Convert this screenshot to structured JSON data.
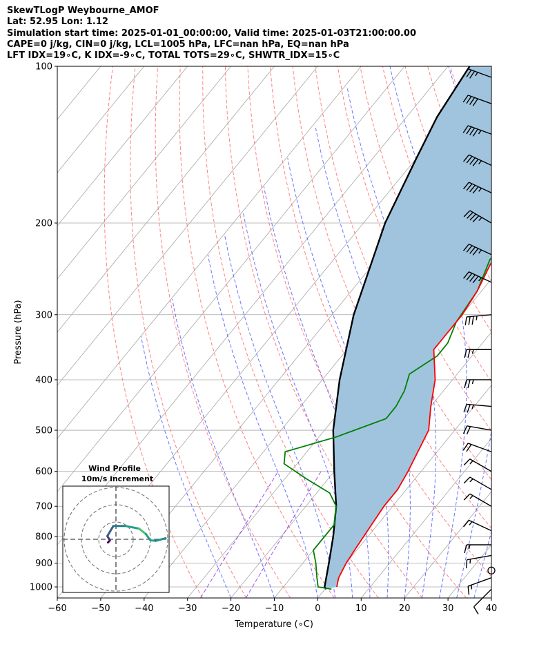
{
  "header": {
    "line1": "SkewTLogP Weybourne_AMOF",
    "line2": "Lat: 52.95   Lon: 1.12",
    "line3": "Simulation start time: 2025-01-01_00:00:00, Valid time: 2025-01-03T21:00:00.00",
    "line4": "CAPE=0 j/kg, CIN=0 j/kg, LCL=1005 hPa, LFC=nan hPa, EQ=nan hPa",
    "line5": "LFT IDX=19∘C, K IDX=-9∘C, TOTAL TOTS=29∘C, SHWTR_IDX=15∘C"
  },
  "chart_data": {
    "type": "line",
    "xlabel": "Temperature (∘C)",
    "ylabel": "Pressure (hPa)",
    "x_ticks": [
      -60,
      -50,
      -40,
      -30,
      -20,
      -10,
      0,
      10,
      20,
      30,
      40
    ],
    "x_tick_labels": [
      "−60",
      "−50",
      "−40",
      "−30",
      "−20",
      "−10",
      "0",
      "10",
      "20",
      "30",
      "40"
    ],
    "y_ticks": [
      100,
      200,
      300,
      400,
      500,
      600,
      700,
      800,
      900,
      1000
    ],
    "xlim": [
      -60,
      40
    ],
    "ylim": [
      1050,
      100
    ],
    "y_scale": "log",
    "grid": true,
    "colors": {
      "temperature": "#ff0000",
      "dewpoint": "#008000",
      "parcel": "#000000",
      "cape_fill": "#a0c4de",
      "dry_adiabats": "#ff6b6b",
      "moist_adiabats": "#4d5dff",
      "mixing_ratio": "#8a2be2",
      "isotherms": "#a6a6a6"
    },
    "series": [
      {
        "key": "temperature",
        "points": [
          [
            2.3,
            1000
          ],
          [
            1,
            960
          ],
          [
            0,
            900
          ],
          [
            -0.5,
            850
          ],
          [
            -1,
            800
          ],
          [
            -2,
            700
          ],
          [
            -2,
            650
          ],
          [
            -3,
            600
          ],
          [
            -6,
            500
          ],
          [
            -10,
            450
          ],
          [
            -14,
            400
          ],
          [
            -20,
            350
          ],
          [
            -20,
            300
          ],
          [
            -21,
            270
          ],
          [
            -23,
            240
          ],
          [
            -22,
            215
          ],
          [
            -20,
            200
          ],
          [
            -16,
            180
          ],
          [
            -13,
            160
          ],
          [
            -11,
            140
          ],
          [
            -10,
            120
          ],
          [
            -11,
            100
          ]
        ]
      },
      {
        "key": "dewpoint",
        "points": [
          [
            1.5,
            1010
          ],
          [
            -2,
            1000
          ],
          [
            -4,
            960
          ],
          [
            -7,
            900
          ],
          [
            -10,
            850
          ],
          [
            -10,
            800
          ],
          [
            -10,
            760
          ],
          [
            -13,
            700
          ],
          [
            -17,
            660
          ],
          [
            -25,
            620
          ],
          [
            -33,
            580
          ],
          [
            -35,
            550
          ],
          [
            -26,
            515
          ],
          [
            -18,
            475
          ],
          [
            -18,
            450
          ],
          [
            -19,
            420
          ],
          [
            -21,
            390
          ],
          [
            -18,
            360
          ],
          [
            -18,
            340
          ],
          [
            -20,
            310
          ],
          [
            -21,
            270
          ],
          [
            -24,
            235
          ],
          [
            -23,
            215
          ],
          [
            -20,
            195
          ],
          [
            -18,
            170
          ],
          [
            -20,
            150
          ],
          [
            -17,
            135
          ],
          [
            -12,
            120
          ],
          [
            -10,
            100
          ]
        ]
      },
      {
        "key": "parcel",
        "points": [
          [
            0.3,
            1010
          ],
          [
            -0.5,
            1000
          ],
          [
            -4,
            900
          ],
          [
            -8,
            800
          ],
          [
            -13,
            700
          ],
          [
            -20,
            600
          ],
          [
            -28,
            500
          ],
          [
            -36,
            400
          ],
          [
            -45,
            300
          ],
          [
            -55,
            200
          ],
          [
            -60,
            150
          ],
          [
            -63,
            125
          ],
          [
            -65,
            100
          ]
        ]
      }
    ],
    "wind_barbs": [
      {
        "p": 1010,
        "dir": 225,
        "kt": 10
      },
      {
        "p": 960,
        "dir": 250,
        "kt": 15
      },
      {
        "p": 930,
        "dir": 0,
        "kt": 0
      },
      {
        "p": 870,
        "dir": 260,
        "kt": 15
      },
      {
        "p": 830,
        "dir": 270,
        "kt": 15
      },
      {
        "p": 780,
        "dir": 295,
        "kt": 15
      },
      {
        "p": 700,
        "dir": 300,
        "kt": 15
      },
      {
        "p": 650,
        "dir": 300,
        "kt": 15
      },
      {
        "p": 600,
        "dir": 300,
        "kt": 15
      },
      {
        "p": 550,
        "dir": 290,
        "kt": 20
      },
      {
        "p": 500,
        "dir": 280,
        "kt": 20
      },
      {
        "p": 450,
        "dir": 275,
        "kt": 25
      },
      {
        "p": 400,
        "dir": 270,
        "kt": 25
      },
      {
        "p": 350,
        "dir": 270,
        "kt": 25
      },
      {
        "p": 300,
        "dir": 265,
        "kt": 35
      },
      {
        "p": 260,
        "dir": 295,
        "kt": 45
      },
      {
        "p": 230,
        "dir": 295,
        "kt": 45
      },
      {
        "p": 200,
        "dir": 300,
        "kt": 45
      },
      {
        "p": 175,
        "dir": 295,
        "kt": 45
      },
      {
        "p": 155,
        "dir": 295,
        "kt": 45
      },
      {
        "p": 135,
        "dir": 290,
        "kt": 45
      },
      {
        "p": 118,
        "dir": 290,
        "kt": 40
      },
      {
        "p": 105,
        "dir": 290,
        "kt": 35
      }
    ],
    "inset": {
      "title_line1": "Wind Profile",
      "title_line2": "10m/s increment",
      "points": [
        [
          -1.2,
          0.6
        ],
        [
          -0.9,
          0.2
        ],
        [
          -1.3,
          -0.6
        ],
        [
          -0.4,
          -2.5
        ],
        [
          1.5,
          -2.5
        ],
        [
          3.5,
          -2
        ],
        [
          4.5,
          -1
        ],
        [
          5.2,
          0.2
        ],
        [
          6,
          0.3
        ],
        [
          7.5,
          -0.2
        ]
      ]
    }
  }
}
